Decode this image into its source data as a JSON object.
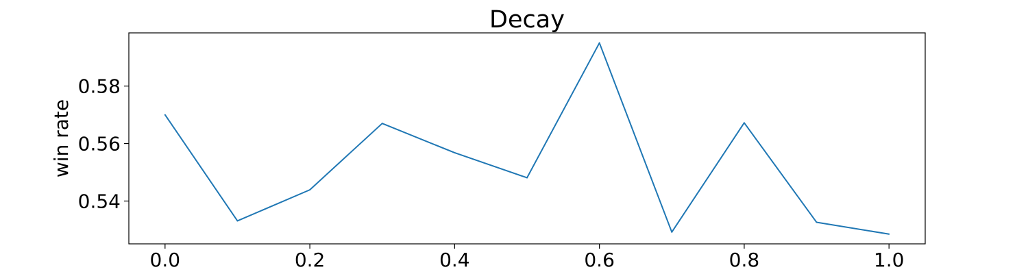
{
  "chart_data": {
    "type": "line",
    "title": "Decay",
    "xlabel": "",
    "ylabel": "win rate",
    "x": [
      0.0,
      0.1,
      0.2,
      0.3,
      0.4,
      0.5,
      0.6,
      0.7,
      0.8,
      0.9,
      1.0
    ],
    "series": [
      {
        "values": [
          0.57,
          0.5331,
          0.5439,
          0.567,
          0.5568,
          0.5481,
          0.595,
          0.5292,
          0.5672,
          0.5326,
          0.5285
        ]
      }
    ],
    "xlim": [
      -0.05,
      1.05
    ],
    "ylim": [
      0.5251,
      0.5985
    ],
    "xticks": [
      "0.0",
      "0.2",
      "0.4",
      "0.6",
      "0.8",
      "1.0"
    ],
    "yticks": [
      "0.54",
      "0.56",
      "0.58"
    ],
    "grid": false,
    "legend": "none",
    "colors": {
      "line": "#1f77b4",
      "axes": "#000000",
      "background": "#ffffff"
    }
  }
}
